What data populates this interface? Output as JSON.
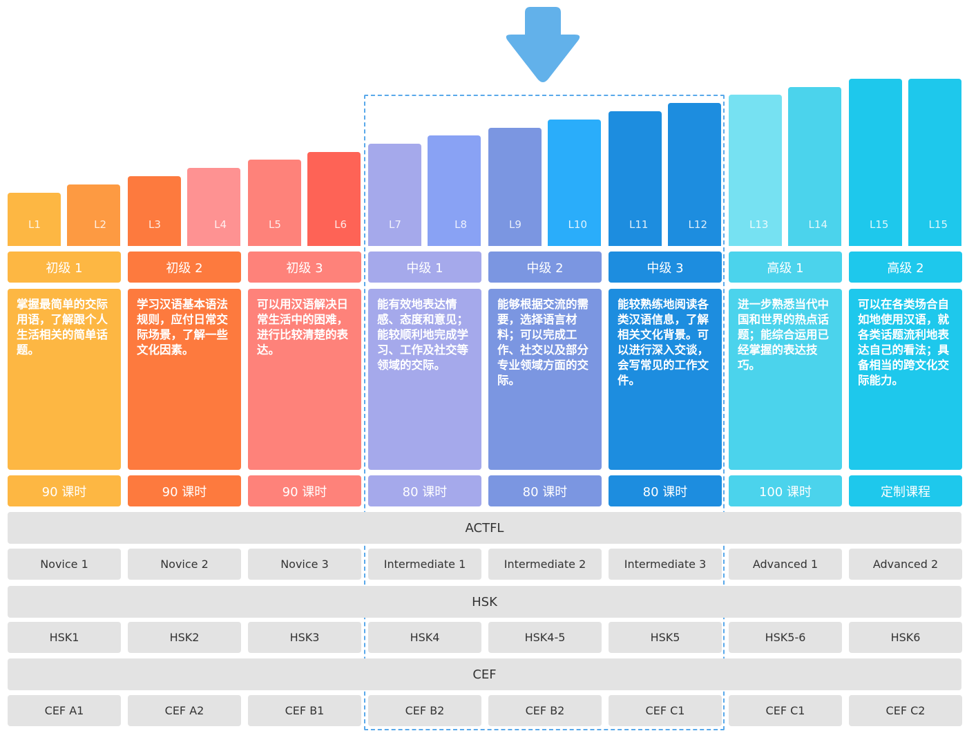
{
  "colors": {
    "beginner1": "#fdb743",
    "beginner1_bar2": "#fd9a42",
    "beginner2": "#fd7a3e",
    "beginner2_bar2": "#fe9292",
    "beginner3": "#fe827a",
    "beginner3_bar2": "#fe6356",
    "inter1": "#a5a9eb",
    "inter1_bar2": "#89a2f4",
    "inter2": "#7b96e1",
    "inter2_bar2": "#2aadfa",
    "inter3": "#1d8ddf",
    "adv1": "#4bd3ec",
    "adv1_bar": "#76e1f2",
    "adv2": "#1ec8ec",
    "highlight_border": "#58a8ea",
    "arrow": "#62b1ea",
    "grey_cell": "#e3e3e3"
  },
  "bars": [
    "L1",
    "L2",
    "L3",
    "L4",
    "L5",
    "L6",
    "L7",
    "L8",
    "L9",
    "L10",
    "L11",
    "L12",
    "L13",
    "L14",
    "L15",
    "L15"
  ],
  "levels": [
    {
      "name": "初级 1",
      "desc": "掌握最简单的交际用语，了解跟个人生活相关的简单话题。",
      "hours": "90 课时"
    },
    {
      "name": "初级 2",
      "desc": "学习汉语基本语法规则，应付日常交际场景，了解一些文化因素。",
      "hours": "90 课时"
    },
    {
      "name": "初级 3",
      "desc": "可以用汉语解决日常生活中的困难，进行比较清楚的表达。",
      "hours": "90 课时"
    },
    {
      "name": "中级 1",
      "desc": "能有效地表达情感、态度和意见；能较顺利地完成学习、工作及社交等领域的交际。",
      "hours": "80 课时"
    },
    {
      "name": "中级 2",
      "desc": "能够根据交流的需要，选择语言材料；可以完成工作、社交以及部分专业领域方面的交际。",
      "hours": "80 课时"
    },
    {
      "name": "中级 3",
      "desc": "能较熟练地阅读各类汉语信息，了解相关文化背景。可以进行深入交谈，会写常见的工作文件。",
      "hours": "80 课时"
    },
    {
      "name": "高级 1",
      "desc": "进一步熟悉当代中国和世界的热点话题；能综合运用已经掌握的表达技巧。",
      "hours": "100 课时"
    },
    {
      "name": "高级 2",
      "desc": "可以在各类场合自如地使用汉语，就各类话题流利地表达自己的看法；具备相当的跨文化交际能力。",
      "hours": "定制课程"
    }
  ],
  "bands": {
    "actfl": "ACTFL",
    "hsk": "HSK",
    "cef": "CEF"
  },
  "actfl": [
    "Novice 1",
    "Novice 2",
    "Novice 3",
    "Intermediate 1",
    "Intermediate 2",
    "Intermediate 3",
    "Advanced 1",
    "Advanced 2"
  ],
  "hsk": [
    "HSK1",
    "HSK2",
    "HSK3",
    "HSK4",
    "HSK4-5",
    "HSK5",
    "HSK5-6",
    "HSK6"
  ],
  "cef": [
    "CEF A1",
    "CEF A2",
    "CEF B1",
    "CEF B2",
    "CEF B2",
    "CEF C1",
    "CEF C1",
    "CEF C2"
  ]
}
